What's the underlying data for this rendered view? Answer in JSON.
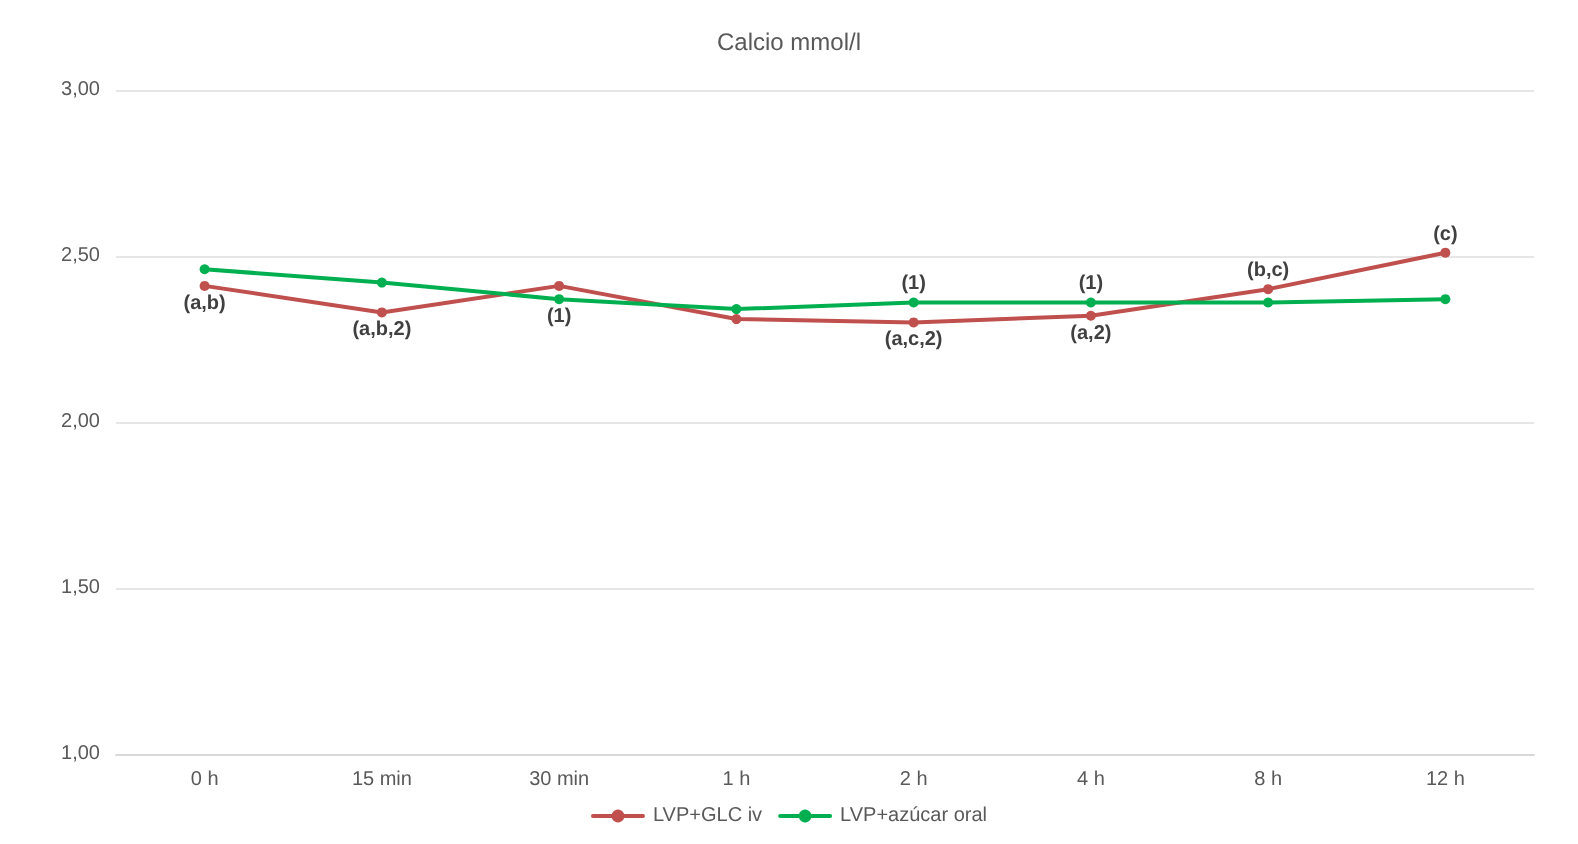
{
  "chart_data": {
    "type": "line",
    "title": "Calcio mmol/l",
    "categories": [
      "0 h",
      "15 min",
      "30 min",
      "1 h",
      "2 h",
      "4 h",
      "8 h",
      "12 h"
    ],
    "series": [
      {
        "name": "LVP+GLC iv",
        "color": "#c0504d",
        "values": [
          2.41,
          2.33,
          2.41,
          2.31,
          2.3,
          2.32,
          2.4,
          2.51
        ]
      },
      {
        "name": "LVP+azúcar oral",
        "color": "#00b050",
        "values": [
          2.46,
          2.42,
          2.37,
          2.34,
          2.36,
          2.36,
          2.36,
          2.37
        ]
      }
    ],
    "ylim": [
      1,
      3
    ],
    "yticks": [
      {
        "value": 1,
        "label": "1,00"
      },
      {
        "value": 1.5,
        "label": "1,50"
      },
      {
        "value": 2,
        "label": "2,00"
      },
      {
        "value": 2.5,
        "label": "2,50"
      },
      {
        "value": 3,
        "label": "3,00"
      }
    ],
    "grid": "y",
    "legend": "bottom",
    "marker": "circle",
    "line_style": "solid",
    "annotations": [
      {
        "text": "(a,b)",
        "x": "0 h",
        "y": 2.41
      },
      {
        "text": "(a,b,2)",
        "x": "15 min",
        "y": 2.33
      },
      {
        "text": "(1)",
        "x": "30 min",
        "y": 2.37
      },
      {
        "text": "(a,c,2)",
        "x": "2 h",
        "y": 2.3
      },
      {
        "text": "(1)",
        "x": "2 h",
        "y": 2.36
      },
      {
        "text": "(a,2)",
        "x": "4 h",
        "y": 2.32
      },
      {
        "text": "(1)",
        "x": "4 h",
        "y": 2.36
      },
      {
        "text": "(b,c)",
        "x": "8 h",
        "y": 2.4
      },
      {
        "text": "(c)",
        "x": "12 h",
        "y": 2.51
      }
    ]
  }
}
